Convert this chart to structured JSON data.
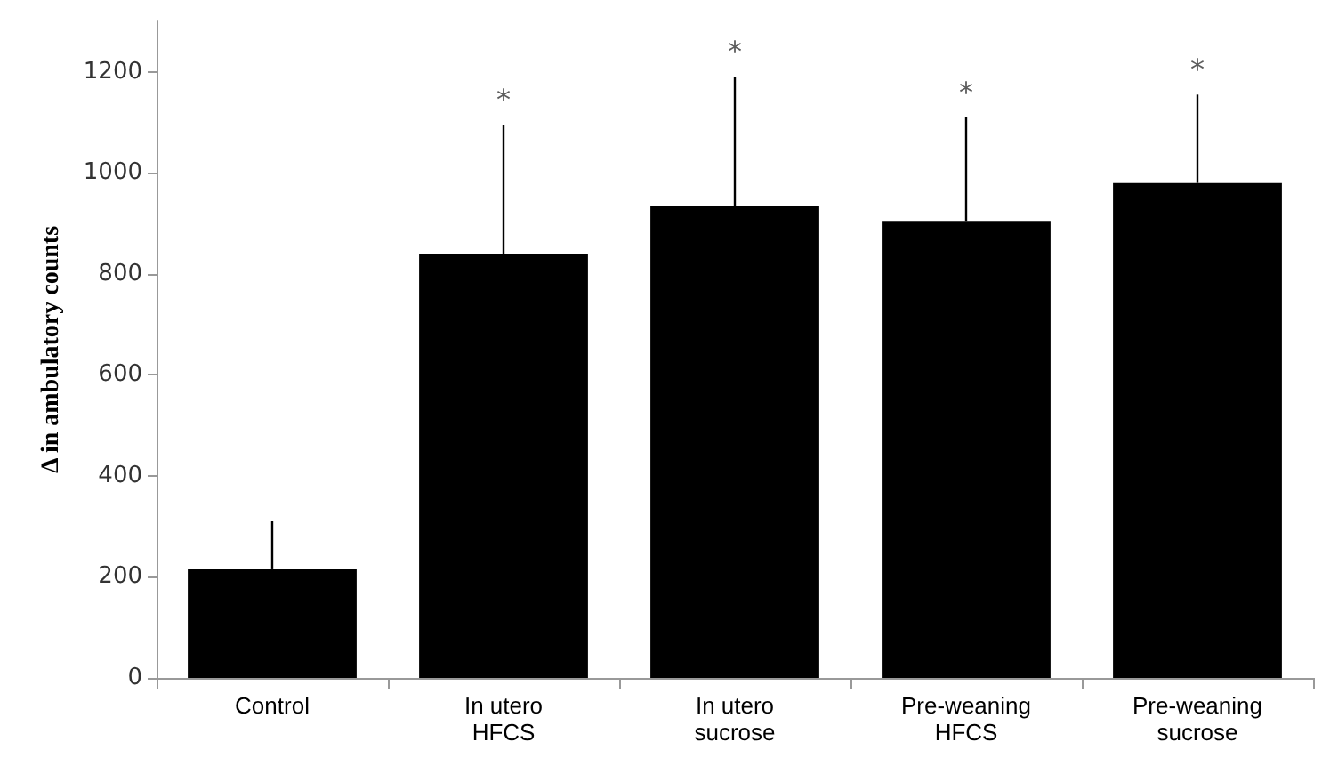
{
  "chart_data": {
    "type": "bar",
    "ylabel": "Δ in ambulatory counts",
    "categories": [
      "Control",
      "In utero\nHFCS",
      "In utero\nsucrose",
      "Pre-weaning\nHFCS",
      "Pre-weaning\nsucrose"
    ],
    "values": [
      215,
      840,
      935,
      905,
      980
    ],
    "errors": [
      [
        215,
        310
      ],
      [
        840,
        1095
      ],
      [
        935,
        1190
      ],
      [
        905,
        1110
      ],
      [
        980,
        1155
      ]
    ],
    "color": "#000000",
    "ylim": [
      0,
      1300
    ],
    "yticks": [
      0,
      200,
      400,
      600,
      800,
      {
        "value": 1000,
        "label": "1000"
      },
      {
        "value": 1200,
        "label": "1200"
      }
    ],
    "grid": false,
    "annotations": [
      {
        "text": "*",
        "x": "In utero\nHFCS",
        "y": 1095
      },
      {
        "text": "*",
        "x": "In utero\nsucrose",
        "y": 1190
      },
      {
        "text": "*",
        "x": "Pre-weaning\nHFCS",
        "y": 1110
      },
      {
        "text": "*",
        "x": "Pre-weaning\nsucrose",
        "y": 1155
      }
    ]
  }
}
